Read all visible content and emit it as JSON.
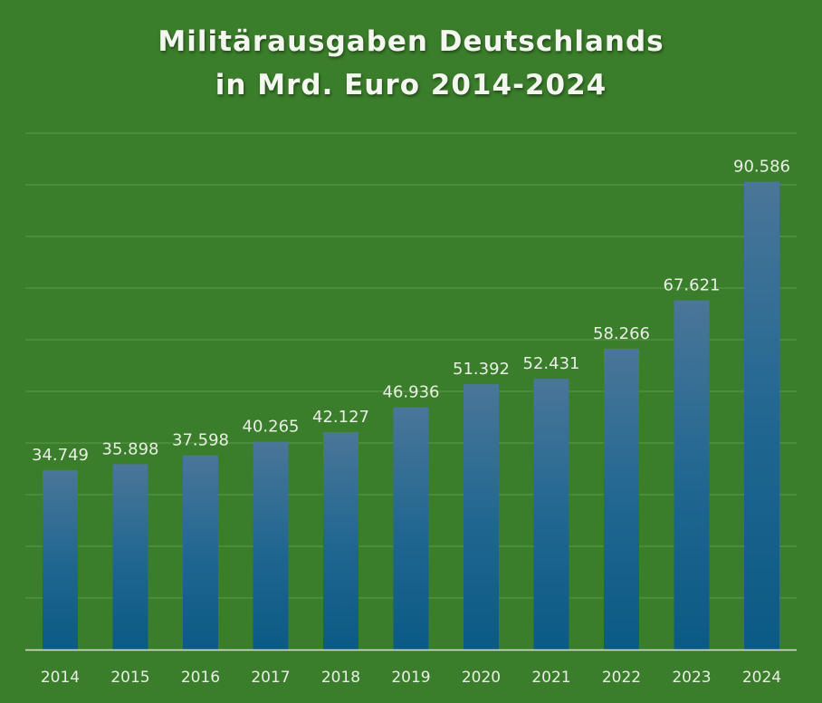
{
  "title_line1": "Militärausgaben Deutschlands",
  "title_line2": "in Mrd. Euro 2014-2024",
  "colors": {
    "background": "#3a7d2a",
    "bar_top": "#4a7699",
    "bar_bottom": "#0b5a85",
    "gridline": "#5c9a4a",
    "axis": "#d5e3cf"
  },
  "chart_data": {
    "type": "bar",
    "title": "Militärausgaben Deutschlands in Mrd. Euro 2014-2024",
    "xlabel": "",
    "ylabel": "",
    "ylim": [
      0,
      100000
    ],
    "grid": true,
    "categories": [
      "2014",
      "2015",
      "2016",
      "2017",
      "2018",
      "2019",
      "2020",
      "2021",
      "2022",
      "2023",
      "2024"
    ],
    "values": [
      34749,
      35898,
      37598,
      40265,
      42127,
      46936,
      51392,
      52431,
      58266,
      67621,
      90586
    ],
    "value_labels": [
      "34.749",
      "35.898",
      "37.598",
      "40.265",
      "42.127",
      "46.936",
      "51.392",
      "52.431",
      "58.266",
      "67.621",
      "90.586"
    ]
  }
}
